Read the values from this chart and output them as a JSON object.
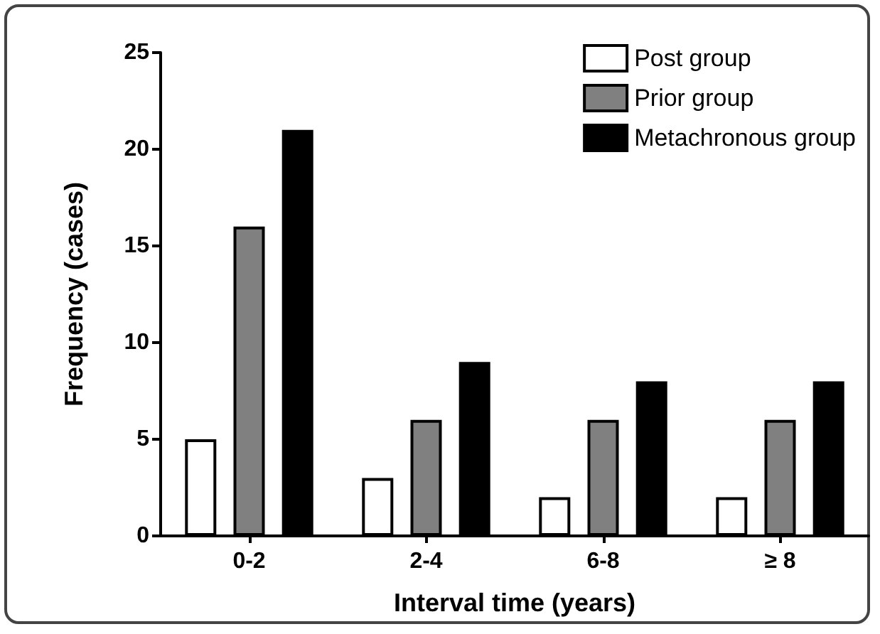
{
  "chart_data": {
    "type": "bar",
    "xlabel": "Interval time (years)",
    "ylabel": "Frequency (cases)",
    "categories": [
      "0-2",
      "2-4",
      "6-8",
      "≥ 8"
    ],
    "series": [
      {
        "name": "Post group",
        "color": "#ffffff",
        "values": [
          5,
          3,
          2,
          2
        ]
      },
      {
        "name": "Prior group",
        "color": "#808080",
        "values": [
          16,
          6,
          6,
          6
        ]
      },
      {
        "name": "Metachronous group",
        "color": "#000000",
        "values": [
          21,
          9,
          8,
          8
        ]
      }
    ],
    "ylim": [
      0,
      25
    ],
    "yticks": [
      0,
      5,
      10,
      15,
      20,
      25
    ],
    "grid": false,
    "legend": "top right"
  }
}
